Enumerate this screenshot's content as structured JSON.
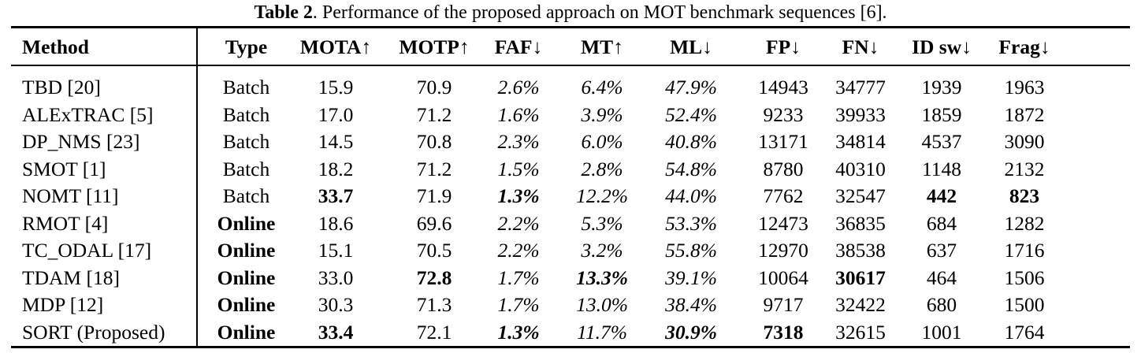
{
  "caption": {
    "label": "Table 2",
    "text": ". Performance of the proposed approach on MOT benchmark sequences [6]."
  },
  "headers": [
    "Method",
    "Type",
    "MOTA↑",
    "MOTP↑",
    "FAF↓",
    "MT↑",
    "ML↓",
    "FP↓",
    "FN↓",
    "ID sw↓",
    "Frag↓"
  ],
  "rows": [
    {
      "method": "TBD [20]",
      "type": "Batch",
      "mota": "15.9",
      "motp": "70.9",
      "faf": "2.6%",
      "mt": "6.4%",
      "ml": "47.9%",
      "fp": "14943",
      "fn": "34777",
      "idsw": "1939",
      "frag": "1963",
      "bold": []
    },
    {
      "method": "ALExTRAC [5]",
      "type": "Batch",
      "mota": "17.0",
      "motp": "71.2",
      "faf": "1.6%",
      "mt": "3.9%",
      "ml": "52.4%",
      "fp": "9233",
      "fn": "39933",
      "idsw": "1859",
      "frag": "1872",
      "bold": []
    },
    {
      "method": "DP_NMS [23]",
      "type": "Batch",
      "mota": "14.5",
      "motp": "70.8",
      "faf": "2.3%",
      "mt": "6.0%",
      "ml": "40.8%",
      "fp": "13171",
      "fn": "34814",
      "idsw": "4537",
      "frag": "3090",
      "bold": []
    },
    {
      "method": "SMOT [1]",
      "type": "Batch",
      "mota": "18.2",
      "motp": "71.2",
      "faf": "1.5%",
      "mt": "2.8%",
      "ml": "54.8%",
      "fp": "8780",
      "fn": "40310",
      "idsw": "1148",
      "frag": "2132",
      "bold": []
    },
    {
      "method": "NOMT [11]",
      "type": "Batch",
      "mota": "33.7",
      "motp": "71.9",
      "faf": "1.3%",
      "mt": "12.2%",
      "ml": "44.0%",
      "fp": "7762",
      "fn": "32547",
      "idsw": "442",
      "frag": "823",
      "bold": [
        "mota",
        "faf",
        "idsw",
        "frag"
      ]
    },
    {
      "method": "RMOT [4]",
      "type": "Online",
      "mota": "18.6",
      "motp": "69.6",
      "faf": "2.2%",
      "mt": "5.3%",
      "ml": "53.3%",
      "fp": "12473",
      "fn": "36835",
      "idsw": "684",
      "frag": "1282",
      "bold": [
        "type"
      ]
    },
    {
      "method": "TC_ODAL [17]",
      "type": "Online",
      "mota": "15.1",
      "motp": "70.5",
      "faf": "2.2%",
      "mt": "3.2%",
      "ml": "55.8%",
      "fp": "12970",
      "fn": "38538",
      "idsw": "637",
      "frag": "1716",
      "bold": [
        "type"
      ]
    },
    {
      "method": "TDAM [18]",
      "type": "Online",
      "mota": "33.0",
      "motp": "72.8",
      "faf": "1.7%",
      "mt": "13.3%",
      "ml": "39.1%",
      "fp": "10064",
      "fn": "30617",
      "idsw": "464",
      "frag": "1506",
      "bold": [
        "type",
        "motp",
        "mt",
        "fn"
      ]
    },
    {
      "method": "MDP [12]",
      "type": "Online",
      "mota": "30.3",
      "motp": "71.3",
      "faf": "1.7%",
      "mt": "13.0%",
      "ml": "38.4%",
      "fp": "9717",
      "fn": "32422",
      "idsw": "680",
      "frag": "1500",
      "bold": [
        "type"
      ]
    },
    {
      "method": "SORT (Proposed)",
      "type": "Online",
      "mota": "33.4",
      "motp": "72.1",
      "faf": "1.3%",
      "mt": "11.7%",
      "ml": "30.9%",
      "fp": "7318",
      "fn": "32615",
      "idsw": "1001",
      "frag": "1764",
      "bold": [
        "type",
        "mota",
        "faf",
        "ml",
        "fp"
      ]
    }
  ]
}
